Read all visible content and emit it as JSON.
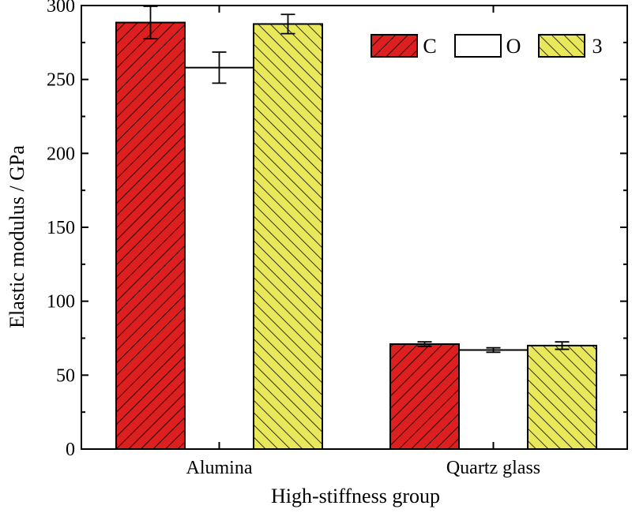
{
  "chart_data": {
    "type": "bar",
    "title": "",
    "xlabel": "High-stiffness group",
    "ylabel": "Elastic modulus / GPa",
    "ylim": [
      0,
      300
    ],
    "yticks": [
      0,
      50,
      100,
      150,
      200,
      250,
      300
    ],
    "grid": false,
    "legend_position": "top-right",
    "categories": [
      "Alumina",
      "Quartz glass"
    ],
    "series": [
      {
        "name": "C",
        "values": [
          288.5,
          71.0
        ],
        "errors": [
          11.0,
          1.5
        ],
        "color": "#dd1f1f",
        "hatch": "forward"
      },
      {
        "name": "O",
        "values": [
          258.0,
          67.0
        ],
        "errors": [
          10.5,
          1.5
        ],
        "color": "#ffffff",
        "hatch": "none"
      },
      {
        "name": "3",
        "values": [
          287.5,
          70.0
        ],
        "errors": [
          6.5,
          2.5
        ],
        "color": "#e8e85a",
        "hatch": "backward"
      }
    ]
  }
}
